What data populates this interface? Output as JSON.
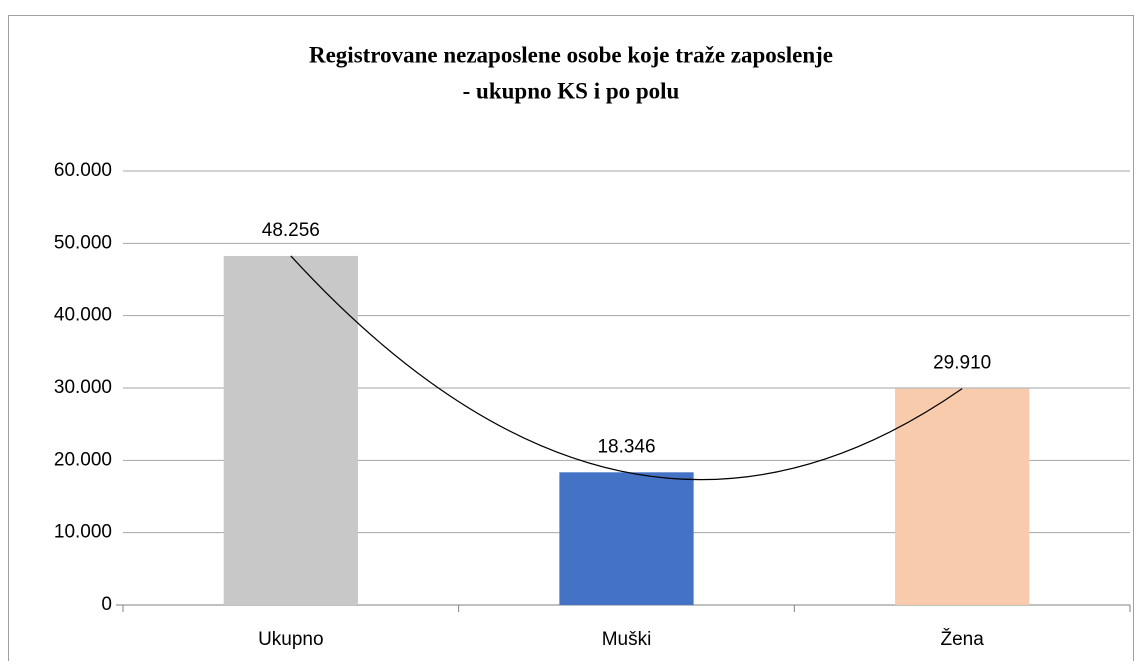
{
  "chart_data": {
    "type": "bar",
    "title": [
      "Registrovane nezaposlene osobe koje traže zaposlenje",
      "- ukupno KS i po polu"
    ],
    "categories": [
      "Ukupno",
      "Muški",
      "Žena"
    ],
    "values": [
      48256,
      18346,
      29910
    ],
    "value_labels": [
      "48.256",
      "18.346",
      "29.910"
    ],
    "colors": [
      "#c8c8c8",
      "#4472c4",
      "#f8cbad"
    ],
    "trendline": "polynomial",
    "ylim": [
      0,
      60000
    ],
    "yticks": [
      0,
      {
        "value": 10000,
        "label": "10.000"
      },
      {
        "value": 20000,
        "label": "20.000"
      },
      {
        "value": 30000,
        "label": "30.000"
      },
      {
        "value": 40000,
        "label": "40.000"
      },
      {
        "value": 50000,
        "label": "50.000"
      },
      {
        "value": 60000,
        "label": "60.000"
      }
    ],
    "grid": true
  }
}
